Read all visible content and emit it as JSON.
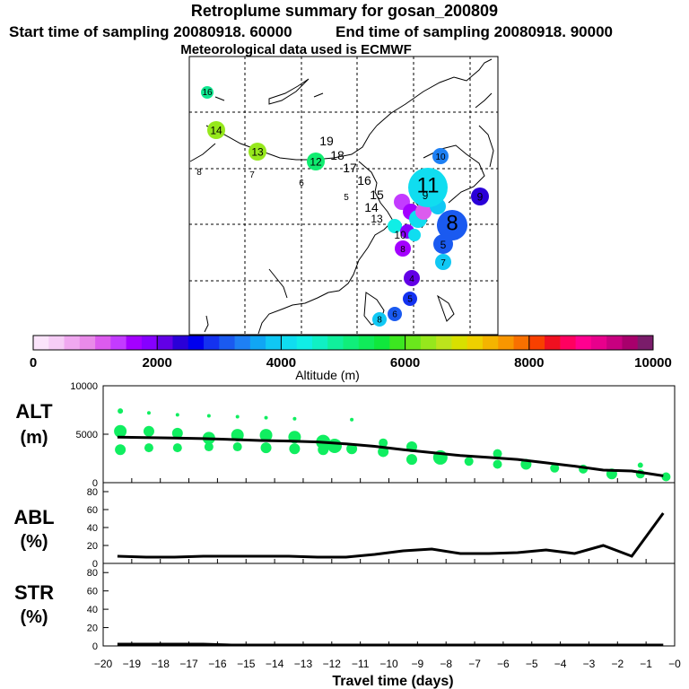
{
  "title": "Retroplume summary for gosan_200809",
  "start_time": "Start time of sampling 20080918. 60000",
  "end_time": "End time of sampling 20080918. 90000",
  "met_data": "Meteorological data used is ECMWF",
  "colorbar": {
    "label": "Altitude (m)",
    "ticks": [
      "0",
      "2000",
      "4000",
      "6000",
      "8000",
      "10000"
    ],
    "colors": [
      "#fbe4fb",
      "#f6cdf6",
      "#f0a8f0",
      "#e98ae9",
      "#dc5bee",
      "#c33bff",
      "#a400ff",
      "#8600ff",
      "#6200e6",
      "#2a00d8",
      "#0000ee",
      "#1432f0",
      "#1a5af0",
      "#1e80f4",
      "#10a6f4",
      "#10c8f4",
      "#10ddf0",
      "#10eee6",
      "#10f0c4",
      "#10f09c",
      "#10ee7a",
      "#10ec5a",
      "#10e83c",
      "#3ce820",
      "#6ae81c",
      "#96e81c",
      "#bce41c",
      "#d8e000",
      "#eed000",
      "#f4b400",
      "#f89600",
      "#f87000",
      "#f84000",
      "#f01020",
      "#ff0060",
      "#ff0090",
      "#e8008c",
      "#c80080",
      "#a8006c",
      "#7a1c6a"
    ]
  },
  "map": {
    "markers": [
      {
        "label": "16",
        "color": "#10e690"
      },
      {
        "label": "14",
        "color": "#96e81c"
      },
      {
        "label": "13",
        "color": "#96e81c"
      },
      {
        "label": "12",
        "color": "#10ec70"
      },
      {
        "label": "10",
        "color": "#1e80f4"
      },
      {
        "label": "9",
        "color": "#2a00d8"
      },
      {
        "label": "11",
        "color": "#10ddf0"
      },
      {
        "label": "8",
        "color": "#1a5af0"
      },
      {
        "label": "5",
        "color": "#1a5af0"
      },
      {
        "label": "7",
        "color": "#10c8f4"
      },
      {
        "label": "4",
        "color": "#6200e6"
      },
      {
        "label": "5",
        "color": "#1432f0"
      },
      {
        "label": "6",
        "color": "#1a5af0"
      },
      {
        "label": "8",
        "color": "#10c8f4"
      },
      {
        "label": "8",
        "color": "#a400ff"
      }
    ],
    "labels": [
      "19",
      "18",
      "17",
      "16",
      "15",
      "14",
      "13",
      "8",
      "7",
      "6",
      "5",
      "9",
      "10"
    ]
  },
  "chart_data": [
    {
      "type": "scatter",
      "name": "ALT",
      "ylabel": "ALT\n(m)",
      "ylim": [
        0,
        10000
      ],
      "yticks": [
        0,
        5000,
        10000
      ],
      "xlim": [
        -20,
        0
      ],
      "median_line": {
        "x": [
          -19.5,
          -18.5,
          -17.5,
          -16.5,
          -15.5,
          -14.5,
          -13.5,
          -12.5,
          -11.5,
          -10.5,
          -9.5,
          -8.5,
          -7.5,
          -6.5,
          -5.5,
          -4.5,
          -3.5,
          -2.5,
          -1.5,
          -0.4
        ],
        "y": [
          4700,
          4650,
          4600,
          4550,
          4450,
          4350,
          4300,
          4200,
          4000,
          3750,
          3400,
          3100,
          2800,
          2600,
          2400,
          2050,
          1700,
          1300,
          1200,
          700
        ]
      },
      "scatter_points": {
        "x": [
          -19.4,
          -19.4,
          -19.4,
          -18.4,
          -18.4,
          -18.4,
          -17.4,
          -17.4,
          -17.4,
          -16.3,
          -16.3,
          -16.3,
          -15.3,
          -15.3,
          -15.3,
          -14.3,
          -14.3,
          -14.3,
          -13.3,
          -13.3,
          -13.3,
          -12.3,
          -12.3,
          -11.9,
          -11.3,
          -11.3,
          -10.2,
          -10.2,
          -9.2,
          -9.2,
          -8.2,
          -7.2,
          -6.2,
          -6.2,
          -5.2,
          -4.2,
          -3.2,
          -2.2,
          -1.2,
          -1.2,
          -0.3
        ],
        "y": [
          7400,
          5300,
          3400,
          7200,
          5300,
          3600,
          7000,
          5100,
          3600,
          6900,
          4600,
          3700,
          6800,
          4900,
          3700,
          6700,
          4900,
          3600,
          6600,
          4700,
          3500,
          4200,
          3400,
          3800,
          6500,
          3500,
          4100,
          3200,
          3700,
          2400,
          2600,
          2200,
          3000,
          1900,
          1900,
          1500,
          1400,
          900,
          1800,
          900,
          600
        ],
        "sizes": [
          3,
          7,
          6,
          2,
          6,
          5,
          2,
          6,
          5,
          2,
          7,
          5,
          2,
          7,
          5,
          2,
          7,
          6,
          2,
          7,
          6,
          8,
          6,
          8,
          2,
          6,
          5,
          6,
          6,
          6,
          8,
          5,
          5,
          5,
          6,
          5,
          5,
          6,
          3,
          5,
          5
        ],
        "color": "#10ee60"
      }
    },
    {
      "type": "line",
      "name": "ABL",
      "ylabel": "ABL\n(%)",
      "ylim": [
        0,
        90
      ],
      "yticks": [
        0,
        20,
        40,
        60,
        80
      ],
      "xlim": [
        -20,
        0
      ],
      "x": [
        -19.5,
        -18.5,
        -17.5,
        -16.5,
        -15.5,
        -14.5,
        -13.5,
        -12.5,
        -11.5,
        -10.5,
        -9.5,
        -8.5,
        -7.5,
        -6.5,
        -5.5,
        -4.5,
        -3.5,
        -2.5,
        -1.5,
        -0.4
      ],
      "y": [
        8,
        7,
        7,
        8,
        8,
        8,
        8,
        7,
        7,
        10,
        14,
        16,
        11,
        11,
        12,
        15,
        11,
        20,
        8,
        56
      ]
    },
    {
      "type": "line",
      "name": "STR",
      "ylabel": "STR\n(%)",
      "ylim": [
        0,
        90
      ],
      "yticks": [
        0,
        20,
        40,
        60,
        80
      ],
      "xlim": [
        -20,
        0
      ],
      "x": [
        -19.5,
        -18.5,
        -17.5,
        -16.5,
        -15.5,
        -14.5,
        -13.5,
        -12.5,
        -11.5,
        -10.5,
        -9.5,
        -8.5,
        -7.5,
        -6.5,
        -5.5,
        -4.5,
        -3.5,
        -2.5,
        -1.5,
        -0.4
      ],
      "y": [
        2,
        2,
        2,
        2,
        1,
        1,
        1,
        1,
        1,
        1,
        1,
        1,
        1,
        1,
        1,
        1,
        1,
        1,
        1,
        1
      ]
    }
  ],
  "xaxis": {
    "label": "Travel time (days)",
    "ticks": [
      "−20",
      "−19",
      "−18",
      "−17",
      "−16",
      "−15",
      "−14",
      "−13",
      "−12",
      "−11",
      "−10",
      "−9",
      "−8",
      "−7",
      "−6",
      "−5",
      "−4",
      "−3",
      "−2",
      "−1",
      "−0"
    ]
  }
}
